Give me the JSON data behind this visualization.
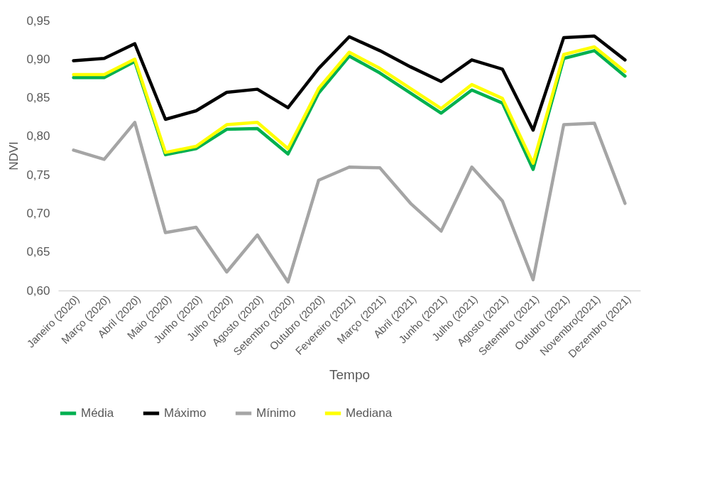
{
  "chart_data": {
    "type": "line",
    "xlabel": "Tempo",
    "ylabel": "NDVI",
    "categories": [
      "Janeiro (2020)",
      "Março (2020)",
      "Abril (2020)",
      "Maio (2020)",
      "Junho (2020)",
      "Julho (2020)",
      "Agosto (2020)",
      "Setembro (2020)",
      "Outubro (2020)",
      "Fevereiro (2021)",
      "Março (2021)",
      "Abril (2021)",
      "Junho (2021)",
      "Julho (2021)",
      "Agosto (2021)",
      "Setembro (2021)",
      "Outubro (2021)",
      "Novembro(2021)",
      "Dezembro (2021)"
    ],
    "series": [
      {
        "name": "Média",
        "color": "#00b050",
        "values": [
          0.876,
          0.876,
          0.897,
          0.776,
          0.784,
          0.809,
          0.81,
          0.777,
          0.856,
          0.904,
          0.882,
          0.856,
          0.83,
          0.86,
          0.843,
          0.757,
          0.901,
          0.911,
          0.878
        ]
      },
      {
        "name": "Máximo",
        "color": "#000000",
        "values": [
          0.898,
          0.901,
          0.92,
          0.822,
          0.833,
          0.857,
          0.861,
          0.837,
          0.888,
          0.929,
          0.911,
          0.89,
          0.871,
          0.899,
          0.887,
          0.808,
          0.928,
          0.93,
          0.899
        ]
      },
      {
        "name": "Mínimo",
        "color": "#a5a5a5",
        "values": [
          0.782,
          0.77,
          0.818,
          0.675,
          0.682,
          0.624,
          0.672,
          0.611,
          0.743,
          0.76,
          0.759,
          0.713,
          0.677,
          0.76,
          0.716,
          0.614,
          0.815,
          0.817,
          0.713
        ]
      },
      {
        "name": "Mediana",
        "color": "#ffff00",
        "values": [
          0.88,
          0.88,
          0.9,
          0.779,
          0.787,
          0.815,
          0.818,
          0.784,
          0.862,
          0.909,
          0.888,
          0.862,
          0.836,
          0.867,
          0.849,
          0.765,
          0.906,
          0.916,
          0.884
        ]
      }
    ],
    "ylim": [
      0.6,
      0.95
    ],
    "yticks": [
      {
        "value": 0.6,
        "label": "0,60"
      },
      {
        "value": 0.65,
        "label": "0,65"
      },
      {
        "value": 0.7,
        "label": "0,70"
      },
      {
        "value": 0.75,
        "label": "0,75"
      },
      {
        "value": 0.8,
        "label": "0,80"
      },
      {
        "value": 0.85,
        "label": "0,85"
      },
      {
        "value": 0.9,
        "label": "0,90"
      },
      {
        "value": 0.95,
        "label": "0,95"
      }
    ],
    "grid": false,
    "legend": "bottom",
    "marker": "none",
    "line_style": "solid"
  }
}
